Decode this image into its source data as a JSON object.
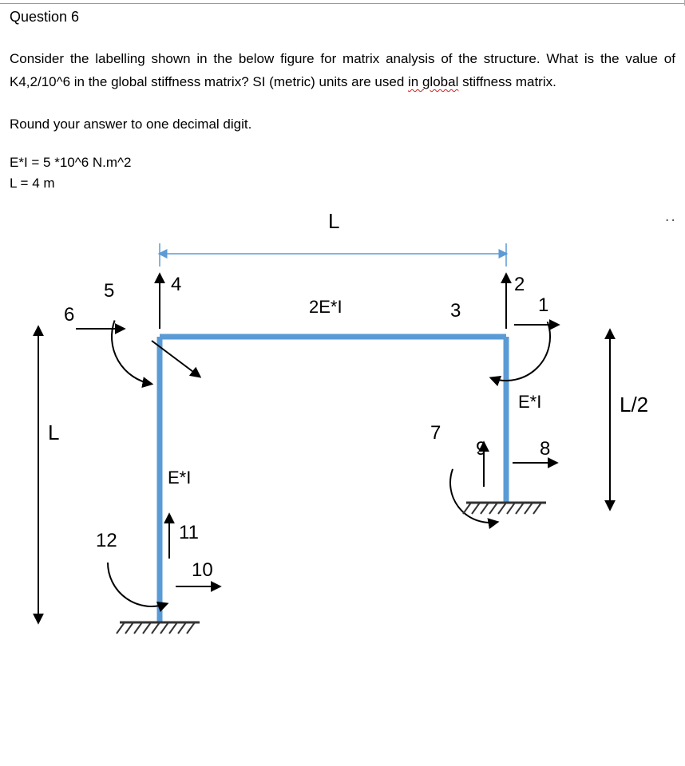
{
  "question_title": "Question 6",
  "paragraph_pre": "Consider the labelling shown in the below figure for matrix analysis of the structure. What is the value of K4,2/10^6 in the global stiffness matrix?  SI (metric) units are used ",
  "paragraph_wavy": "in  global",
  "paragraph_post": " stiffness matrix.",
  "round_text": "Round your answer to one decimal digit.",
  "ei_text": "E*I = 5 *10^6 N.m^2",
  "l_text": "L = 4 m",
  "figure": {
    "top_L": "L",
    "label_5": "5",
    "label_4": "4",
    "label_6": "6",
    "label_2": "2",
    "label_3": "3",
    "label_1": "1",
    "label_7": "7",
    "label_9": "9",
    "label_8": "8",
    "label_11": "11",
    "label_12": "12",
    "label_10": "10",
    "left_L": "L",
    "right_Lhalf": "L/2",
    "beam_2EI": "2E*I",
    "col_EI_right": "E*I",
    "col_EI_left": "E*I",
    "colors": {
      "member_blue": "#5b9bd5",
      "member_blue_dark": "#41719c",
      "text": "#000000",
      "support": "#333333"
    },
    "stroke": {
      "member": 7,
      "thin": 1.5,
      "arrow": 2,
      "dim": 2
    },
    "font": {
      "big": 26,
      "label": 24,
      "ei": 22
    }
  }
}
